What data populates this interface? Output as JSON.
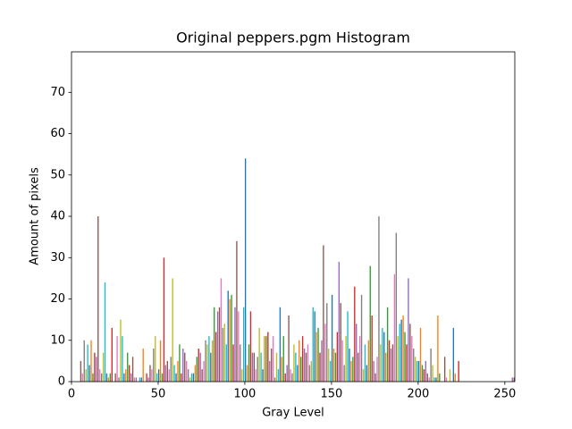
{
  "chart_data": {
    "type": "bar",
    "title": "Original peppers.pgm Histogram",
    "x_label": "Gray Level",
    "y_label": "Amount of pixels",
    "x": [
      0,
      1,
      2,
      3,
      4,
      5,
      6,
      7,
      8,
      9,
      10,
      11,
      12,
      13,
      14,
      15,
      16,
      17,
      18,
      19,
      20,
      21,
      22,
      23,
      24,
      25,
      26,
      27,
      28,
      29,
      30,
      31,
      32,
      33,
      34,
      35,
      36,
      37,
      38,
      39,
      40,
      41,
      42,
      43,
      44,
      45,
      46,
      47,
      48,
      49,
      50,
      51,
      52,
      53,
      54,
      55,
      56,
      57,
      58,
      59,
      60,
      61,
      62,
      63,
      64,
      65,
      66,
      67,
      68,
      69,
      70,
      71,
      72,
      73,
      74,
      75,
      76,
      77,
      78,
      79,
      80,
      81,
      82,
      83,
      84,
      85,
      86,
      87,
      88,
      89,
      90,
      91,
      92,
      93,
      94,
      95,
      96,
      97,
      98,
      99,
      100,
      101,
      102,
      103,
      104,
      105,
      106,
      107,
      108,
      109,
      110,
      111,
      112,
      113,
      114,
      115,
      116,
      117,
      118,
      119,
      120,
      121,
      122,
      123,
      124,
      125,
      126,
      127,
      128,
      129,
      130,
      131,
      132,
      133,
      134,
      135,
      136,
      137,
      138,
      139,
      140,
      141,
      142,
      143,
      144,
      145,
      146,
      147,
      148,
      149,
      150,
      151,
      152,
      153,
      154,
      155,
      156,
      157,
      158,
      159,
      160,
      161,
      162,
      163,
      164,
      165,
      166,
      167,
      168,
      169,
      170,
      171,
      172,
      173,
      174,
      175,
      176,
      177,
      178,
      179,
      180,
      181,
      182,
      183,
      184,
      185,
      186,
      187,
      188,
      189,
      190,
      191,
      192,
      193,
      194,
      195,
      196,
      197,
      198,
      199,
      200,
      201,
      202,
      203,
      204,
      205,
      206,
      207,
      208,
      209,
      210,
      211,
      212,
      213,
      214,
      215,
      216,
      217,
      218,
      219,
      220,
      221,
      222,
      223,
      224,
      225,
      226,
      227,
      228,
      229,
      230,
      231,
      232,
      233,
      234,
      235,
      236,
      237,
      238,
      239,
      240,
      241,
      242,
      243,
      244,
      245,
      246,
      247,
      248,
      249,
      250,
      251,
      252,
      253,
      254,
      255
    ],
    "values": [
      0,
      0,
      0,
      0,
      0,
      5,
      2,
      10,
      3,
      9,
      4,
      10,
      2,
      7,
      6,
      40,
      3,
      2,
      7,
      24,
      2,
      1,
      2,
      13,
      0,
      2,
      11,
      1,
      15,
      11,
      2,
      3,
      7,
      4,
      2,
      6,
      1,
      1,
      0,
      1,
      1,
      8,
      0,
      2,
      1,
      4,
      3,
      8,
      11,
      2,
      3,
      10,
      2,
      30,
      4,
      5,
      3,
      6,
      25,
      4,
      2,
      5,
      9,
      2,
      8,
      7,
      5,
      3,
      1,
      2,
      2,
      4,
      6,
      8,
      7,
      3,
      5,
      10,
      9,
      11,
      7,
      10,
      18,
      12,
      17,
      18,
      25,
      13,
      14,
      9,
      22,
      20,
      21,
      9,
      18,
      34,
      17,
      9,
      3,
      18,
      54,
      4,
      9,
      17,
      7,
      7,
      3,
      6,
      13,
      7,
      3,
      11,
      11,
      12,
      5,
      8,
      11,
      1,
      7,
      3,
      18,
      6,
      11,
      2,
      4,
      16,
      3,
      2,
      9,
      7,
      4,
      10,
      6,
      11,
      8,
      7,
      9,
      4,
      5,
      18,
      17,
      12,
      13,
      7,
      10,
      33,
      14,
      19,
      8,
      5,
      21,
      8,
      7,
      12,
      29,
      19,
      10,
      4,
      11,
      17,
      8,
      5,
      6,
      23,
      14,
      7,
      11,
      21,
      3,
      9,
      4,
      10,
      28,
      16,
      5,
      2,
      6,
      40,
      9,
      13,
      12,
      7,
      18,
      10,
      8,
      9,
      26,
      36,
      11,
      14,
      15,
      16,
      12,
      9,
      25,
      14,
      11,
      8,
      6,
      5,
      5,
      13,
      4,
      3,
      5,
      2,
      1,
      8,
      4,
      1,
      1,
      16,
      2,
      0,
      0,
      6,
      1,
      0,
      3,
      0,
      13,
      2,
      0,
      5,
      0,
      0,
      0,
      0,
      0,
      0,
      0,
      0,
      0,
      0,
      0,
      0,
      0,
      0,
      0,
      0,
      0,
      0,
      0,
      0,
      0,
      0,
      0,
      0,
      0,
      0,
      0,
      0,
      0,
      0,
      1,
      1
    ],
    "colors": [
      "#1f77b4",
      "#ff7f0e",
      "#2ca02c",
      "#d62728",
      "#9467bd",
      "#8c564b",
      "#e377c2",
      "#7f7f7f",
      "#bcbd22",
      "#17becf"
    ],
    "xlim": [
      0,
      255.75
    ],
    "ylim": [
      0,
      79.8
    ],
    "xticks": [
      0,
      50,
      100,
      150,
      200,
      250
    ],
    "yticks": [
      0,
      10,
      20,
      30,
      40,
      50,
      60,
      70
    ],
    "grid": false
  }
}
